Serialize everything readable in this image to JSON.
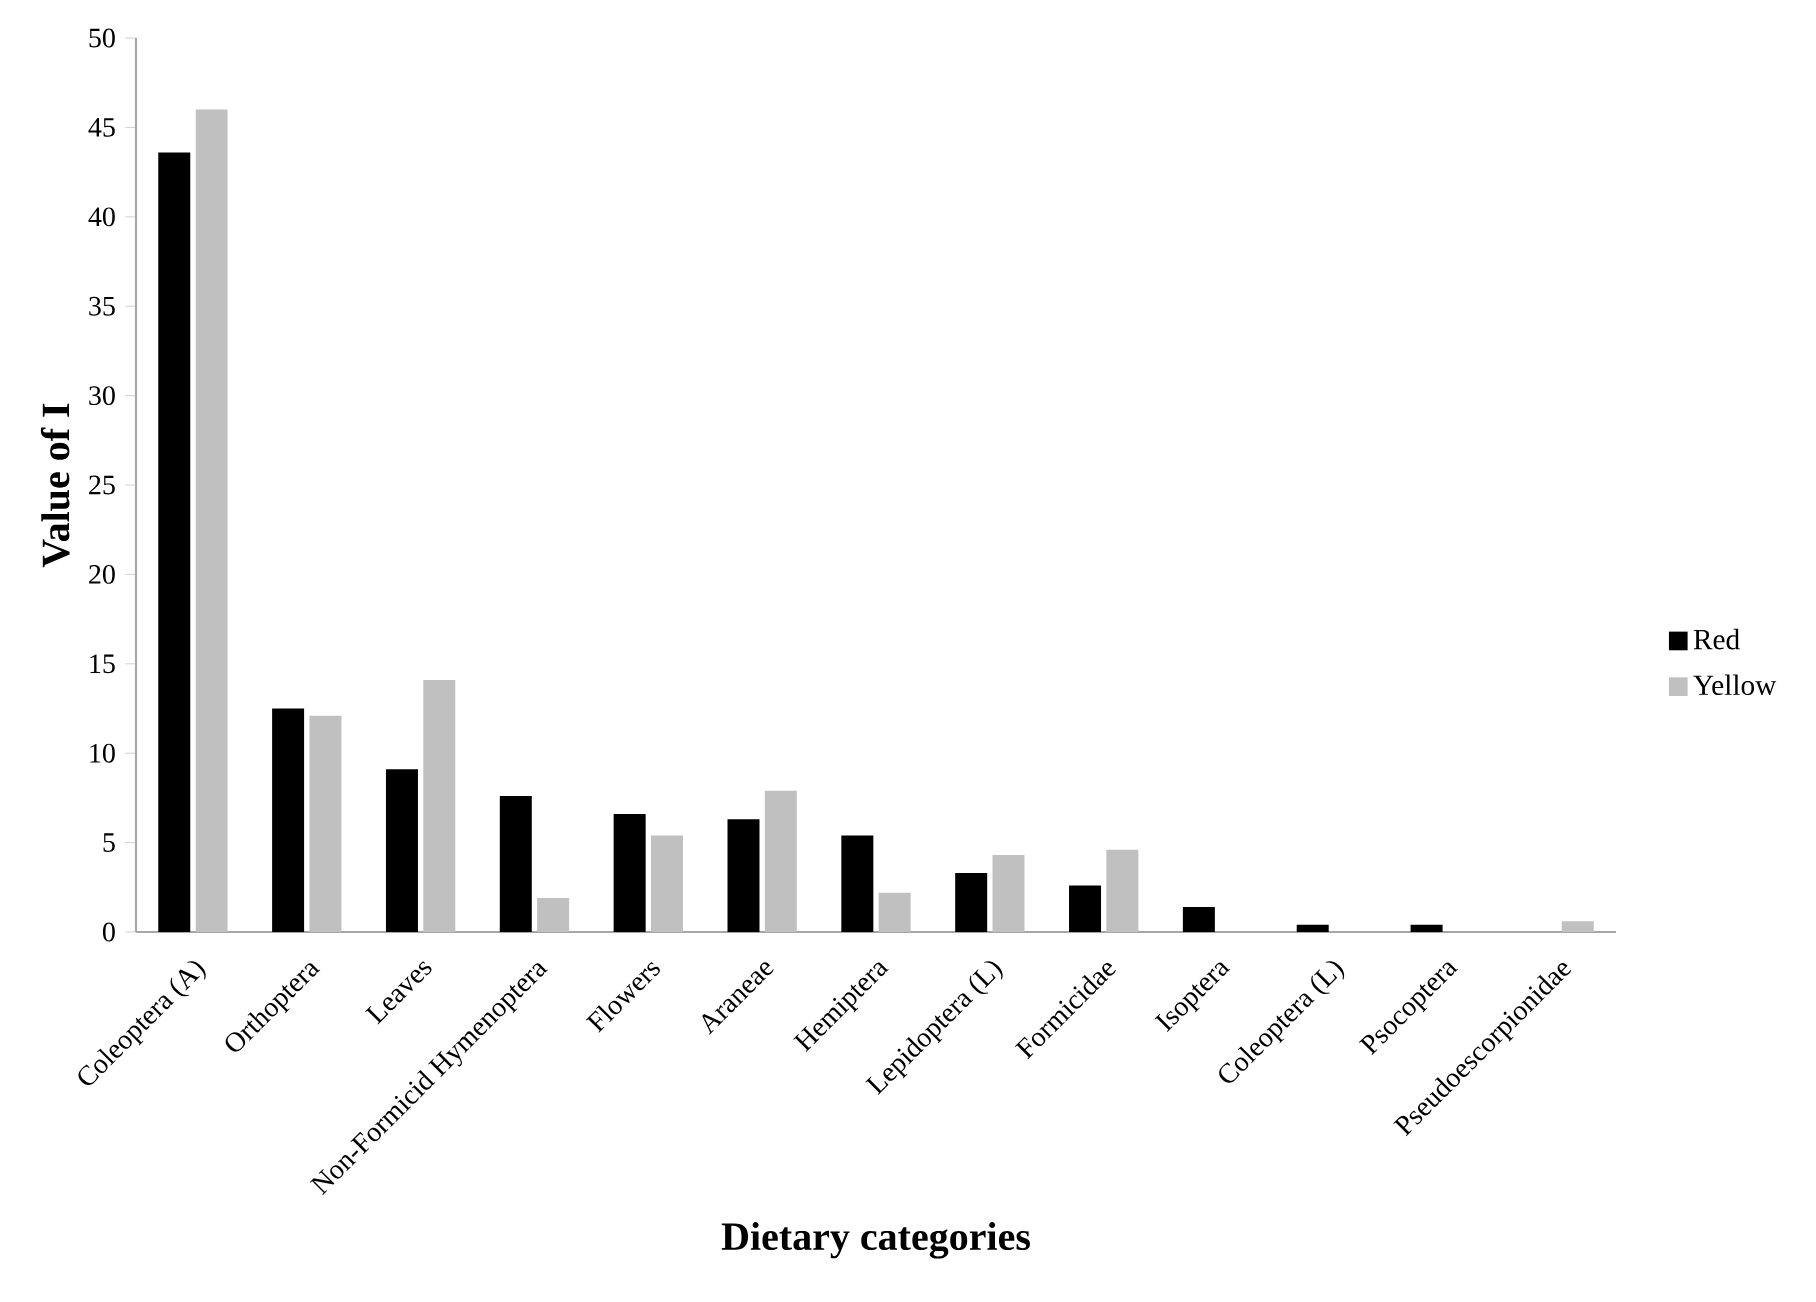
{
  "chart_data": {
    "type": "bar",
    "xlabel": "Dietary categories",
    "ylabel": "Value of I",
    "categories": [
      "Coleoptera (A)",
      "Orthoptera",
      "Leaves",
      "Non-Formicid Hymenoptera",
      "Flowers",
      "Araneae",
      "Hemiptera",
      "Lepidoptera (L)",
      "Formicidae",
      "Isoptera",
      "Coleoptera (L)",
      "Psocoptera",
      "Pseudoescorpionidae"
    ],
    "series": [
      {
        "name": "Red",
        "color": "#000000",
        "values": [
          43.6,
          12.5,
          9.1,
          7.6,
          6.6,
          6.3,
          5.4,
          3.3,
          2.6,
          1.4,
          0.4,
          0.4,
          0
        ]
      },
      {
        "name": "Yellow",
        "color": "#c0c0c0",
        "values": [
          46.0,
          12.1,
          14.1,
          1.9,
          5.4,
          7.9,
          2.2,
          4.3,
          4.6,
          0,
          0,
          0,
          0.6
        ]
      }
    ],
    "ylim": [
      0,
      50
    ],
    "yticks": [
      0,
      5,
      10,
      15,
      20,
      25,
      30,
      35,
      40,
      45,
      50
    ],
    "grid": false,
    "legend": "right"
  }
}
